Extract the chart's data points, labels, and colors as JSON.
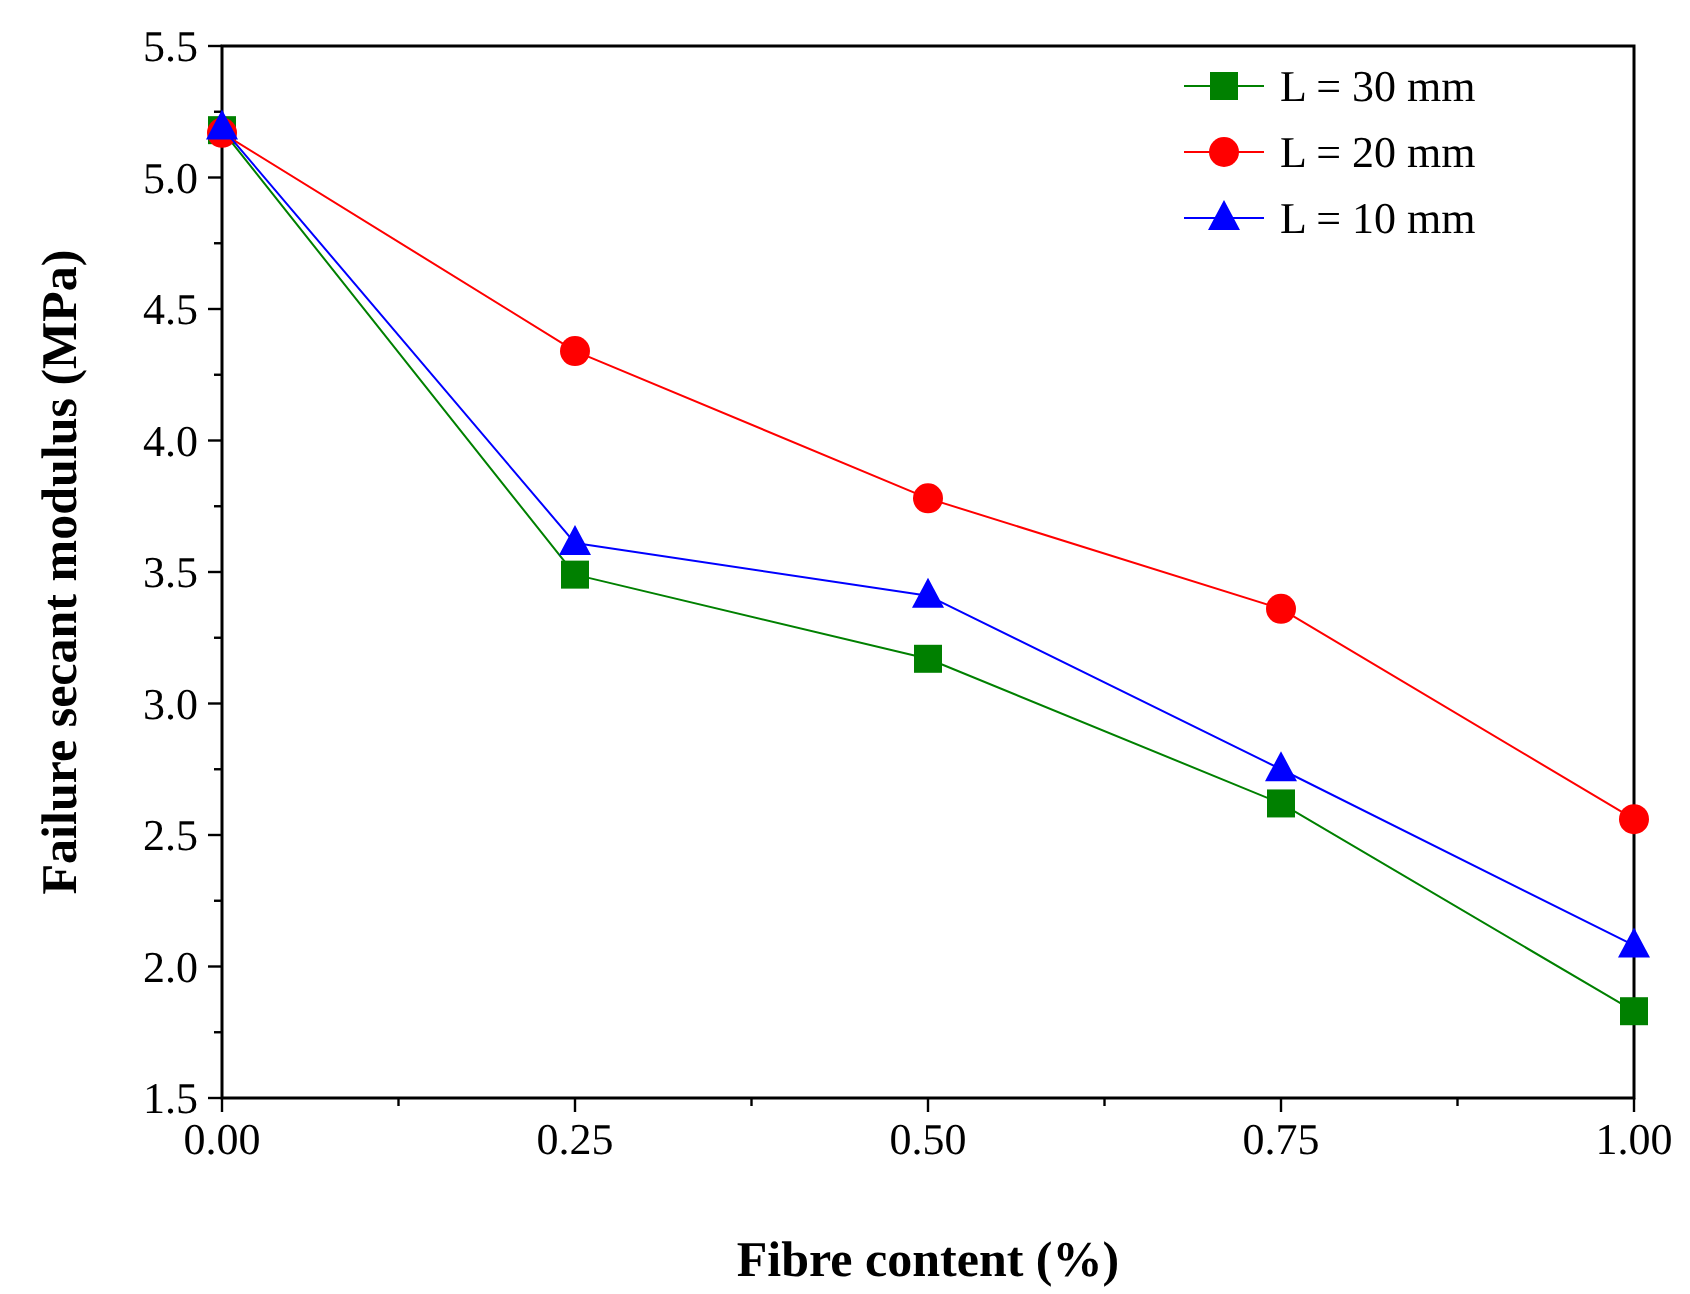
{
  "chart_data": {
    "type": "line",
    "xlabel": "Fibre content (%)",
    "ylabel": "Failure secant modulus (MPa)",
    "x": [
      0,
      0.25,
      0.5,
      0.75,
      1.0
    ],
    "xlim": [
      0,
      1.0
    ],
    "xticks": [
      {
        "value": 0,
        "label": "0.00"
      },
      {
        "value": 0.25,
        "label": "0.25"
      },
      {
        "value": 0.5,
        "label": "0.50"
      },
      {
        "value": 0.75,
        "label": "0.75"
      },
      {
        "value": 1.0,
        "label": "1.00"
      }
    ],
    "ylim": [
      1.5,
      5.5
    ],
    "yticks": [
      1.5,
      {
        "value": 2,
        "label": "2.0"
      },
      2.5,
      {
        "value": 3,
        "label": "3.0"
      },
      3.5,
      {
        "value": 4,
        "label": "4.0"
      },
      4.5,
      {
        "value": 5,
        "label": "5.0"
      },
      5.5
    ],
    "grid": false,
    "legend": "top right",
    "line_style": "solid",
    "series": [
      {
        "name": "L = 30 mm",
        "color": "#008000",
        "marker": "square",
        "values": [
          5.18,
          3.49,
          3.17,
          2.62,
          1.83
        ]
      },
      {
        "name": "L = 20 mm",
        "color": "#ff0000",
        "marker": "circle",
        "values": [
          5.17,
          4.34,
          3.78,
          3.36,
          2.56
        ]
      },
      {
        "name": "L = 10 mm",
        "color": "#0000ff",
        "marker": "triangle",
        "values": [
          5.19,
          3.61,
          3.41,
          2.75,
          2.08
        ]
      }
    ]
  }
}
